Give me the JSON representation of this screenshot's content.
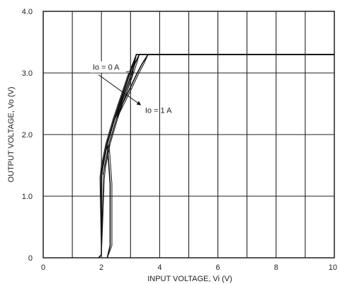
{
  "chart_data": {
    "type": "line",
    "xlabel": "INPUT VOLTAGE, Vi (V)",
    "ylabel": "OUTPUT VOLTAGE, Vo (V)",
    "xlim": [
      0,
      10
    ],
    "ylim": [
      0,
      4.0
    ],
    "x_ticks": [
      "0",
      "2",
      "4",
      "6",
      "8",
      "10"
    ],
    "y_ticks": [
      "0",
      "1.0",
      "2.0",
      "3.0",
      "4.0"
    ],
    "grid": true,
    "annotations": [
      {
        "text": "Io = 0 A",
        "x": 1.7,
        "y": 3.05
      },
      {
        "text": "Io = 1 A",
        "x": 3.5,
        "y": 2.35
      }
    ],
    "series": [
      {
        "x": [
          1.9,
          2.0,
          2.0,
          2.05,
          2.2,
          2.45,
          2.7,
          2.95,
          3.2,
          3.4,
          3.6,
          10.0
        ],
        "y": [
          0.0,
          0.05,
          1.3,
          1.5,
          1.85,
          2.25,
          2.6,
          2.95,
          3.3,
          3.3,
          3.3,
          3.3
        ]
      },
      {
        "x": [
          2.0,
          2.2,
          2.45,
          2.7,
          2.95,
          3.2,
          3.4,
          3.6,
          3.75,
          10.0
        ],
        "y": [
          1.35,
          1.85,
          2.25,
          2.48,
          2.72,
          2.97,
          3.15,
          3.3,
          3.3,
          3.3
        ]
      },
      {
        "x": [
          2.2,
          2.3,
          2.3,
          2.2,
          2.45,
          2.7,
          2.95,
          3.15,
          3.3,
          10.0
        ],
        "y": [
          0.0,
          0.2,
          1.2,
          1.85,
          2.25,
          2.55,
          2.87,
          3.15,
          3.3,
          3.3
        ]
      }
    ]
  }
}
